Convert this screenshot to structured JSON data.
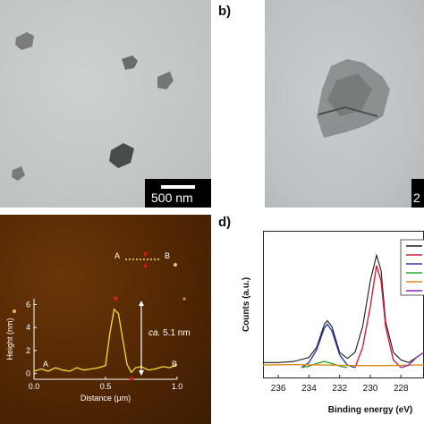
{
  "panel_labels": {
    "b": "b)",
    "d": "d)"
  },
  "panel_a": {
    "scale_label": "500 nm"
  },
  "panel_b": {
    "scale_label": "2"
  },
  "panel_c": {
    "profile_labels": {
      "A": "A",
      "B": "B"
    },
    "inset_labels": {
      "A": "A",
      "B": "B"
    },
    "annotation_prefix": "ca.",
    "annotation_value": "5.1 nm",
    "chart_data": {
      "type": "line",
      "xlabel": "Distance (μm)",
      "ylabel": "Height (nm)",
      "xlim": [
        0,
        1.0
      ],
      "ylim": [
        -0.5,
        6.5
      ],
      "xticks": [
        "0.0",
        "0.5",
        "1.0"
      ],
      "yticks": [
        "0",
        "2",
        "4",
        "6"
      ],
      "x": [
        0.0,
        0.05,
        0.1,
        0.15,
        0.2,
        0.25,
        0.3,
        0.35,
        0.4,
        0.45,
        0.5,
        0.53,
        0.56,
        0.59,
        0.62,
        0.65,
        0.68,
        0.71,
        0.75,
        0.8,
        0.85,
        0.9,
        0.95,
        1.0
      ],
      "y": [
        0.2,
        0.4,
        0.2,
        0.5,
        0.3,
        0.2,
        0.5,
        0.3,
        0.4,
        0.5,
        0.7,
        3.5,
        5.6,
        5.2,
        3.0,
        0.8,
        0.1,
        0.5,
        0.6,
        0.3,
        0.4,
        0.6,
        0.5,
        0.8
      ],
      "grid": false
    }
  },
  "panel_d": {
    "chart_data": {
      "type": "line",
      "xlabel": "Binding energy (eV)",
      "ylabel": "Counts (a.u.)",
      "xlim": [
        237,
        226.5
      ],
      "xticks": [
        "236",
        "234",
        "232",
        "230",
        "228"
      ],
      "series": [
        {
          "color": "#1a1a1a",
          "x": [
            237,
            236,
            235,
            234,
            233.5,
            233.0,
            232.8,
            232.5,
            232.0,
            231.5,
            231.0,
            230.5,
            230.0,
            229.6,
            229.3,
            229.0,
            228.5,
            228.0,
            227.5,
            227.0,
            226.5
          ],
          "y": [
            0.1,
            0.1,
            0.12,
            0.2,
            0.4,
            0.85,
            0.92,
            0.8,
            0.3,
            0.18,
            0.3,
            0.8,
            1.7,
            2.2,
            1.9,
            0.9,
            0.3,
            0.15,
            0.1,
            0.2,
            0.3
          ]
        },
        {
          "color": "#d8203a",
          "x": [
            231.0,
            230.5,
            230.0,
            229.6,
            229.3,
            229.0,
            228.5,
            228.0
          ],
          "y": [
            0.0,
            0.4,
            1.2,
            2.0,
            1.7,
            0.8,
            0.15,
            0.0
          ]
        },
        {
          "color": "#2b3aa8",
          "x": [
            234.5,
            234.0,
            233.5,
            233.0,
            232.8,
            232.5,
            232.0,
            231.5,
            231.0
          ],
          "y": [
            0.0,
            0.1,
            0.35,
            0.78,
            0.85,
            0.72,
            0.25,
            0.05,
            0.0
          ]
        },
        {
          "color": "#2aa82a",
          "x": [
            234.5,
            234.0,
            233.5,
            233.0,
            232.5,
            232.0,
            231.5
          ],
          "y": [
            0.0,
            0.03,
            0.08,
            0.12,
            0.08,
            0.03,
            0.0
          ]
        },
        {
          "color": "#e08a1a",
          "x": [
            237,
            235,
            233,
            231,
            229,
            227,
            226.5
          ],
          "y": [
            0.05,
            0.06,
            0.05,
            0.04,
            0.04,
            0.05,
            0.05
          ]
        },
        {
          "color": "#8a2ab0",
          "x": [
            228.0,
            227.5,
            227.0,
            226.5
          ],
          "y": [
            0.0,
            0.05,
            0.2,
            0.3
          ]
        }
      ],
      "legend_position": "top-right",
      "grid": false
    }
  }
}
